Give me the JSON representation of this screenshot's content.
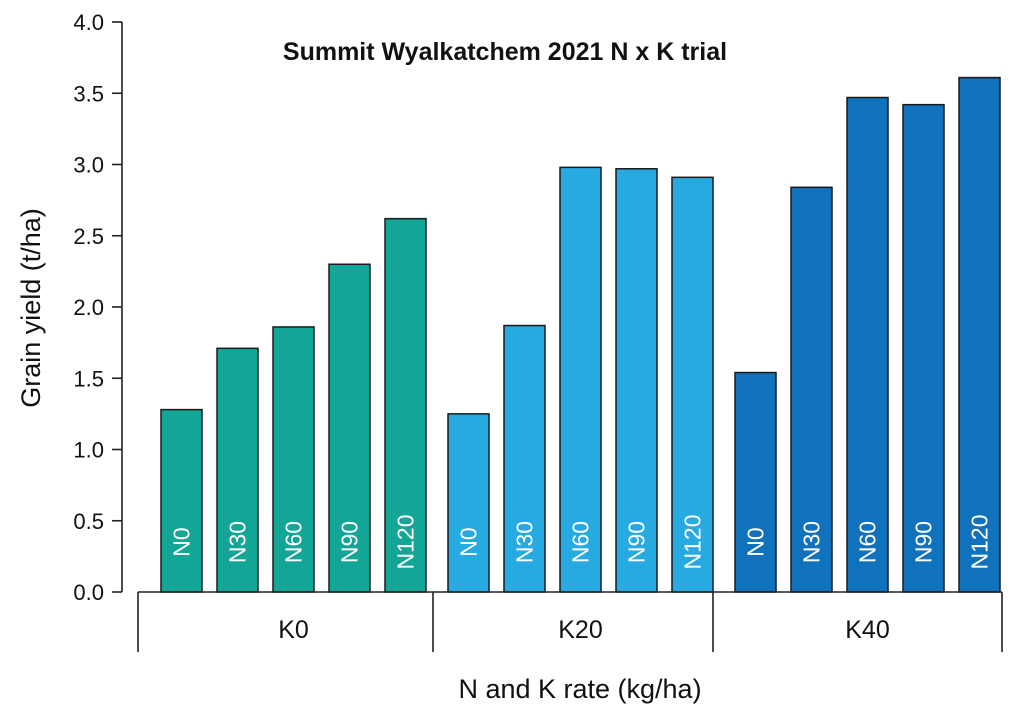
{
  "chart_data": {
    "type": "bar",
    "title": "Summit Wyalkatchem 2021 N x K trial",
    "xlabel": "N and K rate (kg/ha)",
    "ylabel": "Grain yield (t/ha)",
    "ylim": [
      0,
      4.0
    ],
    "yticks": [
      "0.0",
      "0.5",
      "1.0",
      "1.5",
      "2.0",
      "2.5",
      "3.0",
      "3.5",
      "4.0"
    ],
    "grid": false,
    "groups": [
      {
        "name": "K0",
        "color": "#13a596",
        "categories": [
          "N0",
          "N30",
          "N60",
          "N90",
          "N120"
        ],
        "values": [
          1.28,
          1.71,
          1.86,
          2.3,
          2.62
        ]
      },
      {
        "name": "K20",
        "color": "#27aae1",
        "categories": [
          "N0",
          "N30",
          "N60",
          "N90",
          "N120"
        ],
        "values": [
          1.25,
          1.87,
          2.98,
          2.97,
          2.91
        ]
      },
      {
        "name": "K40",
        "color": "#1072bd",
        "categories": [
          "N0",
          "N30",
          "N60",
          "N90",
          "N120"
        ],
        "values": [
          1.54,
          2.84,
          3.47,
          3.42,
          3.61
        ]
      }
    ]
  }
}
